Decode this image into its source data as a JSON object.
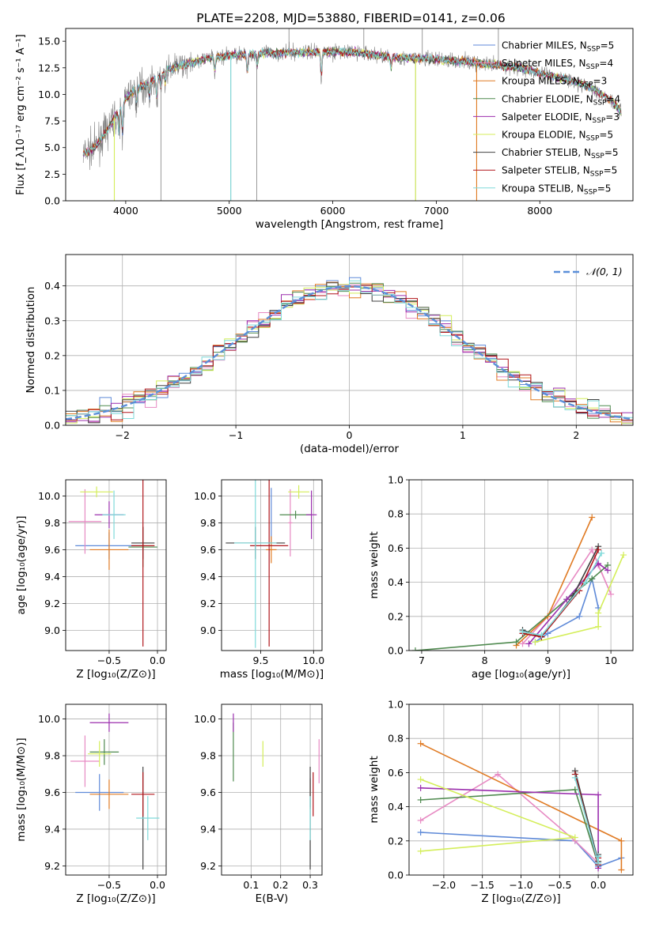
{
  "colors": {
    "Chabrier MILES": "#5f8ad8",
    "Salpeter MILES": "#e78ac3",
    "Kroupa MILES": "#e07b24",
    "Chabrier ELODIE": "#4f8a4f",
    "Salpeter ELODIE": "#9b2fae",
    "Kroupa ELODIE": "#d4ee5a",
    "Chabrier STELIB": "#404040",
    "Salpeter STELIB": "#b0151a",
    "Kroupa STELIB": "#7fdada",
    "normal": "#5b8fd9",
    "data": "#808080",
    "grid": "#b0b0b0"
  },
  "chart_data": [
    {
      "id": "spectrum",
      "type": "line",
      "title": "PLATE=2208, MJD=53880, FIBERID=0141, z=0.06",
      "xlabel": "wavelength [Angstrom, rest frame]",
      "ylabel": "Flux [f_λ10⁻¹⁷ erg cm⁻² s⁻¹ A⁻¹]",
      "xlim": [
        3420,
        8900
      ],
      "ylim": [
        0,
        16.2
      ],
      "xticks": [
        4000,
        5000,
        6000,
        7000,
        8000
      ],
      "yticks": [
        0.0,
        2.5,
        5.0,
        7.5,
        10.0,
        12.5,
        15.0
      ],
      "grid": false,
      "legend_position": "right",
      "legend": [
        {
          "model": "Chabrier MILES",
          "base": "Chabrier MILES, N",
          "sub": "SSP",
          "tail": "=5"
        },
        {
          "model": "Salpeter MILES",
          "base": "Salpeter MILES, N",
          "sub": "SSP",
          "tail": "=4"
        },
        {
          "model": "Kroupa MILES",
          "base": "Kroupa MILES, N",
          "sub": "SSP",
          "tail": "=3"
        },
        {
          "model": "Chabrier ELODIE",
          "base": "Chabrier ELODIE, N",
          "sub": "SSP",
          "tail": "=4"
        },
        {
          "model": "Salpeter ELODIE",
          "base": "Salpeter ELODIE, N",
          "sub": "SSP",
          "tail": "=3"
        },
        {
          "model": "Kroupa ELODIE",
          "base": "Kroupa ELODIE, N",
          "sub": "SSP",
          "tail": "=5"
        },
        {
          "model": "Chabrier STELIB",
          "base": "Chabrier STELIB, N",
          "sub": "SSP",
          "tail": "=5"
        },
        {
          "model": "Salpeter STELIB",
          "base": "Salpeter STELIB, N",
          "sub": "SSP",
          "tail": "=5"
        },
        {
          "model": "Kroupa STELIB",
          "base": "Kroupa STELIB, N",
          "sub": "SSP",
          "tail": "=5"
        }
      ],
      "continuum": [
        [
          3590,
          4.4
        ],
        [
          3700,
          5.0
        ],
        [
          3800,
          6.3
        ],
        [
          3900,
          8.0
        ],
        [
          4000,
          9.6
        ],
        [
          4100,
          10.5
        ],
        [
          4200,
          11.0
        ],
        [
          4300,
          11.5
        ],
        [
          4400,
          12.3
        ],
        [
          4600,
          12.9
        ],
        [
          4800,
          13.4
        ],
        [
          5000,
          13.7
        ],
        [
          5200,
          13.8
        ],
        [
          5500,
          13.9
        ],
        [
          5800,
          14.0
        ],
        [
          6000,
          14.0
        ],
        [
          6200,
          14.0
        ],
        [
          6500,
          13.6
        ],
        [
          6700,
          13.4
        ],
        [
          6800,
          13.4
        ],
        [
          7000,
          13.3
        ],
        [
          7300,
          13.1
        ],
        [
          7500,
          12.8
        ],
        [
          7800,
          12.5
        ],
        [
          8000,
          12.0
        ],
        [
          8300,
          11.3
        ],
        [
          8500,
          10.6
        ],
        [
          8700,
          9.4
        ],
        [
          8790,
          8.2
        ]
      ],
      "absorption_features": [
        [
          3934,
          2.5
        ],
        [
          3968,
          3.0
        ],
        [
          4102,
          1.5
        ],
        [
          4227,
          1.5
        ],
        [
          4300,
          2.2
        ],
        [
          4340,
          1.3
        ],
        [
          4383,
          1.2
        ],
        [
          4861,
          1.5
        ],
        [
          5175,
          2.0
        ],
        [
          5270,
          1.2
        ],
        [
          5890,
          2.5
        ],
        [
          6563,
          1.3
        ]
      ],
      "spikes": [
        [
          3890,
          0.0
        ],
        [
          4340,
          0.0
        ],
        [
          5015,
          0.0
        ],
        [
          5265,
          0.0
        ],
        [
          5577,
          16.2
        ],
        [
          6300,
          16.2
        ],
        [
          6800,
          0.0
        ],
        [
          6865,
          16.2
        ],
        [
          7390,
          0.0
        ],
        [
          7600,
          16.2
        ]
      ]
    },
    {
      "id": "residuals",
      "type": "histogram",
      "xlabel": "(data-model)/error",
      "ylabel": "Normed distribution",
      "xlim": [
        -2.5,
        2.5
      ],
      "ylim": [
        0,
        0.49
      ],
      "xticks": [
        -2,
        -1,
        0,
        1,
        2
      ],
      "yticks": [
        0.0,
        0.1,
        0.2,
        0.3,
        0.4
      ],
      "grid": true,
      "legend_position": "upper right",
      "normal_label": "𝒩(0, 1)",
      "normal": {
        "mean": 0,
        "sigma": 1
      }
    },
    {
      "id": "age-vs-Z",
      "type": "errorbar",
      "xlabel": "Z [log₁₀(Z/Z⊙)]",
      "ylabel": "age  [log₁₀(age/yr)]",
      "xlim": [
        -0.95,
        0.09
      ],
      "ylim": [
        8.85,
        10.12
      ],
      "xticks": [
        -0.5,
        0.0
      ],
      "yticks": [
        9.0,
        9.2,
        9.4,
        9.6,
        9.8,
        10.0
      ],
      "grid": true,
      "points": [
        {
          "model": "Chabrier MILES",
          "x": -0.5,
          "y": 9.63,
          "xerr": 0.35,
          "yerr": 0.1
        },
        {
          "model": "Salpeter MILES",
          "x": -0.75,
          "y": 9.81,
          "xerr": 0.17,
          "yerr": 0.24
        },
        {
          "model": "Kroupa MILES",
          "x": -0.5,
          "y": 9.6,
          "xerr": 0.2,
          "yerr": 0.15
        },
        {
          "model": "Chabrier ELODIE",
          "x": -0.15,
          "y": 9.62,
          "xerr": 0.15,
          "yerr": 0.15
        },
        {
          "model": "Salpeter ELODIE",
          "x": -0.5,
          "y": 9.86,
          "xerr": 0.15,
          "yerr": 0.1
        },
        {
          "model": "Kroupa ELODIE",
          "x": -0.63,
          "y": 10.03,
          "xerr": 0.17,
          "yerr": 0.04
        },
        {
          "model": "Chabrier STELIB",
          "x": -0.15,
          "y": 9.65,
          "xerr": 0.12,
          "yerr": 0.12
        },
        {
          "model": "Salpeter STELIB",
          "x": -0.15,
          "y": 9.63,
          "xerr": 0.12,
          "yerr": 0.75
        },
        {
          "model": "Kroupa STELIB",
          "x": -0.45,
          "y": 9.86,
          "xerr": 0.12,
          "yerr": 0.18
        }
      ]
    },
    {
      "id": "age-vs-mass",
      "type": "errorbar",
      "xlabel": "mass [log₁₀(M/M⊙)]",
      "xlim": [
        9.13,
        10.08
      ],
      "ylim": [
        8.85,
        10.12
      ],
      "xticks": [
        9.5,
        10.0
      ],
      "yticks": [
        9.0,
        9.2,
        9.4,
        9.6,
        9.8,
        10.0
      ],
      "grid": true,
      "points": [
        {
          "model": "Chabrier MILES",
          "x": 9.6,
          "y": 9.85,
          "xerr": 0.0,
          "yerr": 0.21
        },
        {
          "model": "Salpeter MILES",
          "x": 9.78,
          "y": 9.8,
          "xerr": 0.02,
          "yerr": 0.25
        },
        {
          "model": "Kroupa MILES",
          "x": 9.6,
          "y": 9.6,
          "xerr": 0.05,
          "yerr": 0.1
        },
        {
          "model": "Chabrier ELODIE",
          "x": 9.83,
          "y": 9.86,
          "xerr": 0.15,
          "yerr": 0.03
        },
        {
          "model": "Salpeter ELODIE",
          "x": 9.98,
          "y": 9.86,
          "xerr": 0.05,
          "yerr": 0.18
        },
        {
          "model": "Kroupa ELODIE",
          "x": 9.86,
          "y": 10.03,
          "xerr": 0.1,
          "yerr": 0.05
        },
        {
          "model": "Chabrier STELIB",
          "x": 9.45,
          "y": 9.65,
          "xerr": 0.28,
          "yerr": 0.12
        },
        {
          "model": "Salpeter STELIB",
          "x": 9.58,
          "y": 9.63,
          "xerr": 0.18,
          "yerr": 0.75
        },
        {
          "model": "Kroupa STELIB",
          "x": 9.45,
          "y": 9.65,
          "xerr": 0.2,
          "yerr": 0.78
        }
      ]
    },
    {
      "id": "mass-weight-vs-age",
      "type": "line",
      "xlabel": "age  [log₁₀(age/yr)]",
      "ylabel": "mass weight",
      "xlim": [
        6.8,
        10.35
      ],
      "ylim": [
        0,
        1
      ],
      "xticks": [
        7,
        8,
        9,
        10
      ],
      "yticks": [
        0.0,
        0.2,
        0.4,
        0.6,
        0.8,
        1.0
      ],
      "grid": true,
      "series": [
        {
          "model": "Chabrier MILES",
          "points": [
            [
              8.8,
              0.05
            ],
            [
              9.0,
              0.1
            ],
            [
              9.5,
              0.2
            ],
            [
              9.7,
              0.42
            ],
            [
              9.8,
              0.25
            ]
          ]
        },
        {
          "model": "Salpeter MILES",
          "points": [
            [
              8.6,
              0.04
            ],
            [
              9.0,
              0.2
            ],
            [
              9.7,
              0.59
            ],
            [
              10.0,
              0.33
            ],
            [
              9.8,
              0.5
            ]
          ]
        },
        {
          "model": "Kroupa MILES",
          "points": [
            [
              8.5,
              0.03
            ],
            [
              9.0,
              0.2
            ],
            [
              9.7,
              0.78
            ]
          ]
        },
        {
          "model": "Chabrier ELODIE",
          "points": [
            [
              6.9,
              0.0
            ],
            [
              8.5,
              0.05
            ],
            [
              9.3,
              0.3
            ],
            [
              9.7,
              0.42
            ],
            [
              9.95,
              0.5
            ]
          ]
        },
        {
          "model": "Salpeter ELODIE",
          "points": [
            [
              8.7,
              0.04
            ],
            [
              9.3,
              0.3
            ],
            [
              9.8,
              0.51
            ],
            [
              9.95,
              0.47
            ]
          ]
        },
        {
          "model": "Kroupa ELODIE",
          "points": [
            [
              8.8,
              0.05
            ],
            [
              9.8,
              0.14
            ],
            [
              9.8,
              0.22
            ],
            [
              10.2,
              0.56
            ]
          ]
        },
        {
          "model": "Chabrier STELIB",
          "points": [
            [
              8.6,
              0.12
            ],
            [
              8.9,
              0.08
            ],
            [
              9.4,
              0.32
            ],
            [
              9.8,
              0.61
            ]
          ]
        },
        {
          "model": "Salpeter STELIB",
          "points": [
            [
              8.6,
              0.1
            ],
            [
              8.9,
              0.08
            ],
            [
              9.5,
              0.35
            ],
            [
              9.8,
              0.59
            ]
          ]
        },
        {
          "model": "Kroupa STELIB",
          "points": [
            [
              8.6,
              0.11
            ],
            [
              8.9,
              0.09
            ],
            [
              9.6,
              0.4
            ],
            [
              9.85,
              0.57
            ]
          ]
        }
      ]
    },
    {
      "id": "mass-vs-Z",
      "type": "errorbar",
      "xlabel": "Z [log₁₀(Z/Z⊙)]",
      "ylabel": "mass [log₁₀(M/M⊙)]",
      "xlim": [
        -0.95,
        0.09
      ],
      "ylim": [
        9.15,
        10.08
      ],
      "xticks": [
        -0.5,
        0.0
      ],
      "yticks": [
        9.2,
        9.4,
        9.6,
        9.8,
        10.0
      ],
      "grid": true,
      "points": [
        {
          "model": "Chabrier MILES",
          "x": -0.6,
          "y": 9.6,
          "xerr": 0.25,
          "yerr": 0.1
        },
        {
          "model": "Salpeter MILES",
          "x": -0.75,
          "y": 9.77,
          "xerr": 0.15,
          "yerr": 0.14
        },
        {
          "model": "Kroupa MILES",
          "x": -0.5,
          "y": 9.59,
          "xerr": 0.2,
          "yerr": 0.08
        },
        {
          "model": "Chabrier ELODIE",
          "x": -0.55,
          "y": 9.82,
          "xerr": 0.15,
          "yerr": 0.07
        },
        {
          "model": "Salpeter ELODIE",
          "x": -0.5,
          "y": 9.98,
          "xerr": 0.2,
          "yerr": 0.05
        },
        {
          "model": "Kroupa ELODIE",
          "x": -0.6,
          "y": 9.81,
          "xerr": 0.12,
          "yerr": 0.07
        },
        {
          "model": "Chabrier STELIB",
          "x": -0.15,
          "y": 9.46,
          "xerr": 0.0,
          "yerr": 0.28
        },
        {
          "model": "Salpeter STELIB",
          "x": -0.15,
          "y": 9.59,
          "xerr": 0.12,
          "yerr": 0.12
        },
        {
          "model": "Kroupa STELIB",
          "x": -0.1,
          "y": 9.46,
          "xerr": 0.12,
          "yerr": 0.12
        }
      ]
    },
    {
      "id": "mass-vs-EBV",
      "type": "errorbar",
      "xlabel": "E(B-V)",
      "xlim": [
        0.0,
        0.34
      ],
      "ylim": [
        9.15,
        10.08
      ],
      "xticks": [
        0.1,
        0.2,
        0.3
      ],
      "yticks": [
        9.2,
        9.4,
        9.6,
        9.8,
        10.0
      ],
      "grid": true,
      "points": [
        {
          "model": "Chabrier MILES",
          "x": 0.3,
          "y": 9.6,
          "xerr": 0.0,
          "yerr": 0.08
        },
        {
          "model": "Salpeter MILES",
          "x": 0.33,
          "y": 9.77,
          "xerr": 0.0,
          "yerr": 0.12
        },
        {
          "model": "Kroupa MILES",
          "x": 0.3,
          "y": 9.59,
          "xerr": 0.0,
          "yerr": 0.08
        },
        {
          "model": "Chabrier ELODIE",
          "x": 0.04,
          "y": 9.82,
          "xerr": 0.0,
          "yerr": 0.16
        },
        {
          "model": "Salpeter ELODIE",
          "x": 0.04,
          "y": 9.98,
          "xerr": 0.0,
          "yerr": 0.05
        },
        {
          "model": "Kroupa ELODIE",
          "x": 0.14,
          "y": 9.81,
          "xerr": 0.0,
          "yerr": 0.07
        },
        {
          "model": "Chabrier STELIB",
          "x": 0.3,
          "y": 9.46,
          "xerr": 0.0,
          "yerr": 0.28
        },
        {
          "model": "Salpeter STELIB",
          "x": 0.31,
          "y": 9.59,
          "xerr": 0.0,
          "yerr": 0.12
        },
        {
          "model": "Kroupa STELIB",
          "x": 0.3,
          "y": 9.46,
          "xerr": 0.0,
          "yerr": 0.12
        }
      ]
    },
    {
      "id": "mass-weight-vs-Z",
      "type": "line",
      "xlabel": "Z [log₁₀(Z/Z⊙)]",
      "ylabel": "mass weight",
      "xlim": [
        -2.45,
        0.45
      ],
      "ylim": [
        0,
        1
      ],
      "xticks": [
        -2.0,
        -1.5,
        -1.0,
        -0.5,
        0.0
      ],
      "yticks": [
        0.0,
        0.2,
        0.4,
        0.6,
        0.8,
        1.0
      ],
      "grid": true,
      "series": [
        {
          "model": "Chabrier MILES",
          "points": [
            [
              -2.3,
              0.25
            ],
            [
              -0.3,
              0.2
            ],
            [
              0.0,
              0.05
            ],
            [
              0.3,
              0.1
            ]
          ]
        },
        {
          "model": "Salpeter MILES",
          "points": [
            [
              -2.3,
              0.32
            ],
            [
              -1.3,
              0.59
            ],
            [
              -0.3,
              0.2
            ],
            [
              0.0,
              0.07
            ]
          ]
        },
        {
          "model": "Kroupa MILES",
          "points": [
            [
              -2.3,
              0.77
            ],
            [
              0.3,
              0.2
            ],
            [
              0.3,
              0.03
            ]
          ]
        },
        {
          "model": "Chabrier ELODIE",
          "points": [
            [
              -2.3,
              0.44
            ],
            [
              -0.3,
              0.5
            ],
            [
              0.0,
              0.06
            ]
          ]
        },
        {
          "model": "Salpeter ELODIE",
          "points": [
            [
              -2.3,
              0.51
            ],
            [
              0.0,
              0.47
            ],
            [
              0.0,
              0.04
            ]
          ]
        },
        {
          "model": "Kroupa ELODIE",
          "points": [
            [
              -2.3,
              0.14
            ],
            [
              -0.3,
              0.22
            ],
            [
              -2.3,
              0.56
            ]
          ]
        },
        {
          "model": "Chabrier STELIB",
          "points": [
            [
              -0.3,
              0.61
            ],
            [
              0.0,
              0.08
            ],
            [
              0.0,
              0.12
            ]
          ]
        },
        {
          "model": "Salpeter STELIB",
          "points": [
            [
              -0.3,
              0.59
            ],
            [
              0.0,
              0.06
            ],
            [
              0.0,
              0.1
            ]
          ]
        },
        {
          "model": "Kroupa STELIB",
          "points": [
            [
              -0.3,
              0.57
            ],
            [
              0.0,
              0.07
            ],
            [
              0.0,
              0.11
            ]
          ]
        }
      ]
    }
  ]
}
